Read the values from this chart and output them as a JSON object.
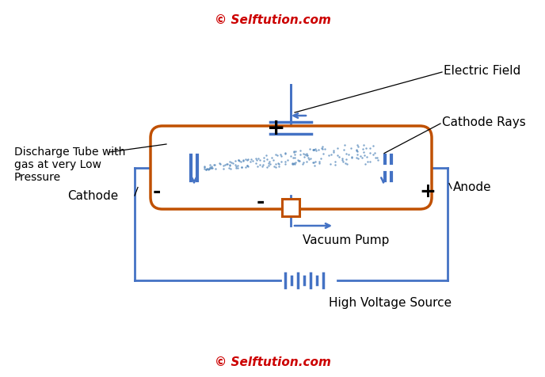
{
  "title_copyright_top": "© Selftution.com",
  "title_copyright_bottom": "© Selftution.com",
  "copyright_color": "#cc0000",
  "bg_color": "#ffffff",
  "circuit_color": "#4472c4",
  "tube_border_color": "#c05000",
  "dots_color": "#5588bb",
  "label_color": "#000000",
  "labels": {
    "electric_field": "Electric Field",
    "cathode_rays": "Cathode Rays",
    "discharge_tube": "Discharge Tube with\ngas at very Low\nPressure",
    "cathode": "Cathode",
    "anode": "Anode",
    "vacuum_pump": "Vacuum Pump",
    "high_voltage": "High Voltage Source"
  },
  "figsize": [
    6.88,
    4.77
  ],
  "dpi": 100
}
